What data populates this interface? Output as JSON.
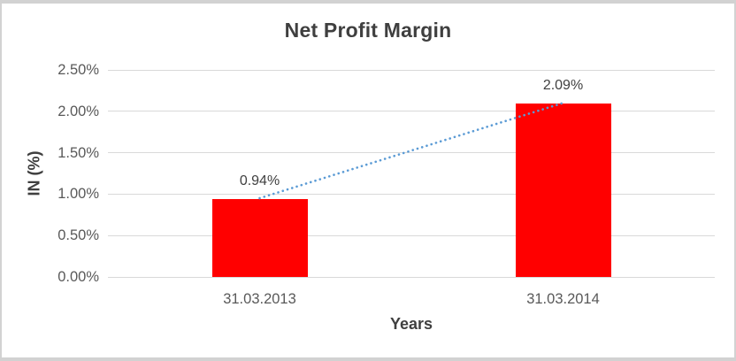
{
  "chart_data": {
    "type": "bar",
    "title": "Net Profit Margin",
    "xlabel": "Years",
    "ylabel": "IN (%)",
    "categories": [
      "31.03.2013",
      "31.03.2014"
    ],
    "series": [
      {
        "name": "Net Profit Margin",
        "values": [
          0.94,
          2.09
        ]
      }
    ],
    "values": [
      0.94,
      2.09
    ],
    "data_labels": [
      "0.94%",
      "2.09%"
    ],
    "y_ticks": [
      {
        "label": "0.00%",
        "value": 0.0
      },
      {
        "label": "0.50%",
        "value": 0.5
      },
      {
        "label": "1.00%",
        "value": 1.0
      },
      {
        "label": "1.50%",
        "value": 1.5
      },
      {
        "label": "2.00%",
        "value": 2.0
      },
      {
        "label": "2.50%",
        "value": 2.5
      }
    ],
    "ylim": [
      0,
      2.5
    ],
    "grid": true,
    "legend": "none",
    "bar_color": "#ff0000",
    "trendline": {
      "type": "linear",
      "style": "dotted",
      "color": "#5b9bd5"
    }
  }
}
